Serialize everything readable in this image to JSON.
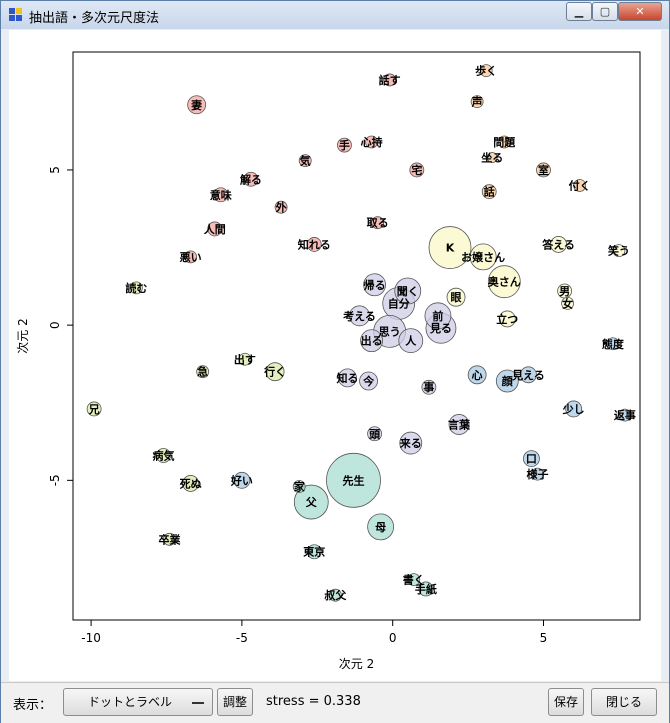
{
  "window": {
    "title": "抽出語・多次元尺度法",
    "controls": {
      "minimize_icon": "minimize-icon",
      "maximize_icon": "maximize-icon",
      "close_icon": "close-icon"
    }
  },
  "bottom_bar": {
    "display_label": "表示：",
    "display_value": "ドットとラベル",
    "adjust_label": "調整",
    "stress_text": "stress = 0.338",
    "save_label": "保存",
    "close_label": "閉じる"
  },
  "chart_data": {
    "type": "scatter",
    "title": "",
    "xlabel": "次元 2",
    "ylabel": "次元 2",
    "xlim": [
      -10.6,
      8.2
    ],
    "ylim": [
      -9.5,
      8.8
    ],
    "xticks": [
      -10,
      -5,
      0,
      5
    ],
    "yticks": [
      -5,
      0,
      5
    ],
    "grid": false,
    "colors": {
      "red": "#f4a6a0",
      "orange": "#f9c898",
      "yellow": "#f9f8c6",
      "green": "#d9eaa8",
      "blue": "#a9c9e3",
      "teal": "#a9ddd2",
      "lavender": "#cfcde6"
    },
    "points": [
      {
        "label": "妻",
        "x": -6.5,
        "y": 7.1,
        "size": 9,
        "color": "red"
      },
      {
        "label": "話す",
        "x": -0.1,
        "y": 7.9,
        "size": 6,
        "color": "red"
      },
      {
        "label": "心持",
        "x": -0.7,
        "y": 5.9,
        "size": 6,
        "color": "red"
      },
      {
        "label": "手",
        "x": -1.6,
        "y": 5.8,
        "size": 7,
        "color": "red"
      },
      {
        "label": "気",
        "x": -2.9,
        "y": 5.3,
        "size": 6,
        "color": "red"
      },
      {
        "label": "解る",
        "x": -4.7,
        "y": 4.7,
        "size": 7,
        "color": "red"
      },
      {
        "label": "意味",
        "x": -5.7,
        "y": 4.2,
        "size": 7,
        "color": "red"
      },
      {
        "label": "宅",
        "x": 0.8,
        "y": 5.0,
        "size": 7,
        "color": "red"
      },
      {
        "label": "外",
        "x": -3.7,
        "y": 3.8,
        "size": 6,
        "color": "red"
      },
      {
        "label": "人間",
        "x": -5.9,
        "y": 3.1,
        "size": 7,
        "color": "red"
      },
      {
        "label": "取る",
        "x": -0.5,
        "y": 3.3,
        "size": 6,
        "color": "red"
      },
      {
        "label": "悪い",
        "x": -6.7,
        "y": 2.2,
        "size": 6,
        "color": "red"
      },
      {
        "label": "知れる",
        "x": -2.6,
        "y": 2.6,
        "size": 7,
        "color": "red"
      },
      {
        "label": "歩く",
        "x": 3.1,
        "y": 8.2,
        "size": 6,
        "color": "orange"
      },
      {
        "label": "声",
        "x": 2.8,
        "y": 7.2,
        "size": 6,
        "color": "orange"
      },
      {
        "label": "問題",
        "x": 3.7,
        "y": 5.9,
        "size": 6,
        "color": "orange"
      },
      {
        "label": "坐る",
        "x": 3.3,
        "y": 5.4,
        "size": 5,
        "color": "orange"
      },
      {
        "label": "室",
        "x": 5.0,
        "y": 5.0,
        "size": 7,
        "color": "orange"
      },
      {
        "label": "付く",
        "x": 6.2,
        "y": 4.5,
        "size": 6,
        "color": "orange"
      },
      {
        "label": "話",
        "x": 3.2,
        "y": 4.3,
        "size": 7,
        "color": "orange"
      },
      {
        "label": "K",
        "x": 1.9,
        "y": 2.5,
        "size": 21,
        "color": "yellow"
      },
      {
        "label": "お嬢さん",
        "x": 3.0,
        "y": 2.2,
        "size": 13,
        "color": "yellow"
      },
      {
        "label": "答える",
        "x": 5.5,
        "y": 2.6,
        "size": 8,
        "color": "yellow"
      },
      {
        "label": "笑う",
        "x": 7.5,
        "y": 2.4,
        "size": 6,
        "color": "yellow"
      },
      {
        "label": "奥さん",
        "x": 3.7,
        "y": 1.4,
        "size": 16,
        "color": "yellow"
      },
      {
        "label": "眼",
        "x": 2.1,
        "y": 0.9,
        "size": 9,
        "color": "yellow"
      },
      {
        "label": "男",
        "x": 5.7,
        "y": 1.1,
        "size": 7,
        "color": "yellow"
      },
      {
        "label": "女",
        "x": 5.8,
        "y": 0.7,
        "size": 6,
        "color": "yellow"
      },
      {
        "label": "立つ",
        "x": 3.8,
        "y": 0.2,
        "size": 8,
        "color": "yellow"
      },
      {
        "label": "読む",
        "x": -8.5,
        "y": 1.2,
        "size": 6,
        "color": "green"
      },
      {
        "label": "出す",
        "x": -4.9,
        "y": -1.1,
        "size": 6,
        "color": "green"
      },
      {
        "label": "急",
        "x": -6.3,
        "y": -1.5,
        "size": 6,
        "color": "green"
      },
      {
        "label": "行く",
        "x": -3.9,
        "y": -1.5,
        "size": 9,
        "color": "green"
      },
      {
        "label": "兄",
        "x": -9.9,
        "y": -2.7,
        "size": 7,
        "color": "green"
      },
      {
        "label": "病気",
        "x": -7.6,
        "y": -4.2,
        "size": 7,
        "color": "green"
      },
      {
        "label": "死ぬ",
        "x": -6.7,
        "y": -5.1,
        "size": 8,
        "color": "green"
      },
      {
        "label": "卒業",
        "x": -7.4,
        "y": -6.9,
        "size": 6,
        "color": "green"
      },
      {
        "label": "態度",
        "x": 7.3,
        "y": -0.6,
        "size": 6,
        "color": "blue"
      },
      {
        "label": "心",
        "x": 2.8,
        "y": -1.6,
        "size": 9,
        "color": "blue"
      },
      {
        "label": "見える",
        "x": 4.5,
        "y": -1.6,
        "size": 8,
        "color": "blue"
      },
      {
        "label": "顔",
        "x": 3.8,
        "y": -1.8,
        "size": 11,
        "color": "blue"
      },
      {
        "label": "少し",
        "x": 6.0,
        "y": -2.7,
        "size": 8,
        "color": "blue"
      },
      {
        "label": "返事",
        "x": 7.7,
        "y": -2.9,
        "size": 6,
        "color": "blue"
      },
      {
        "label": "口",
        "x": 4.6,
        "y": -4.3,
        "size": 8,
        "color": "blue"
      },
      {
        "label": "様子",
        "x": 4.8,
        "y": -4.8,
        "size": 6,
        "color": "blue"
      },
      {
        "label": "好い",
        "x": -5.0,
        "y": -5.0,
        "size": 8,
        "color": "blue"
      },
      {
        "label": "先生",
        "x": -1.3,
        "y": -5.0,
        "size": 27,
        "color": "teal"
      },
      {
        "label": "家",
        "x": -3.1,
        "y": -5.2,
        "size": 6,
        "color": "teal"
      },
      {
        "label": "父",
        "x": -2.7,
        "y": -5.7,
        "size": 17,
        "color": "teal"
      },
      {
        "label": "母",
        "x": -0.4,
        "y": -6.5,
        "size": 13,
        "color": "teal"
      },
      {
        "label": "東京",
        "x": -2.6,
        "y": -7.3,
        "size": 7,
        "color": "teal"
      },
      {
        "label": "書く",
        "x": 0.7,
        "y": -8.2,
        "size": 6,
        "color": "teal"
      },
      {
        "label": "手紙",
        "x": 1.1,
        "y": -8.5,
        "size": 7,
        "color": "teal"
      },
      {
        "label": "叔父",
        "x": -1.9,
        "y": -8.7,
        "size": 6,
        "color": "teal"
      },
      {
        "label": "帰る",
        "x": -0.6,
        "y": 1.3,
        "size": 11,
        "color": "lavender"
      },
      {
        "label": "聞く",
        "x": 0.5,
        "y": 1.1,
        "size": 13,
        "color": "lavender"
      },
      {
        "label": "自分",
        "x": 0.2,
        "y": 0.7,
        "size": 16,
        "color": "lavender"
      },
      {
        "label": "前",
        "x": 1.5,
        "y": 0.3,
        "size": 13,
        "color": "lavender"
      },
      {
        "label": "考える",
        "x": -1.1,
        "y": 0.3,
        "size": 10,
        "color": "lavender"
      },
      {
        "label": "見る",
        "x": 1.6,
        "y": -0.1,
        "size": 15,
        "color": "lavender"
      },
      {
        "label": "思う",
        "x": -0.1,
        "y": -0.2,
        "size": 16,
        "color": "lavender"
      },
      {
        "label": "出る",
        "x": -0.7,
        "y": -0.5,
        "size": 11,
        "color": "lavender"
      },
      {
        "label": "人",
        "x": 0.6,
        "y": -0.5,
        "size": 12,
        "color": "lavender"
      },
      {
        "label": "知る",
        "x": -1.5,
        "y": -1.7,
        "size": 9,
        "color": "lavender"
      },
      {
        "label": "今",
        "x": -0.8,
        "y": -1.8,
        "size": 9,
        "color": "lavender"
      },
      {
        "label": "事",
        "x": 1.2,
        "y": -2.0,
        "size": 7,
        "color": "lavender"
      },
      {
        "label": "頭",
        "x": -0.6,
        "y": -3.5,
        "size": 7,
        "color": "lavender"
      },
      {
        "label": "来る",
        "x": 0.6,
        "y": -3.8,
        "size": 11,
        "color": "lavender"
      },
      {
        "label": "言葉",
        "x": 2.2,
        "y": -3.2,
        "size": 10,
        "color": "lavender"
      }
    ]
  }
}
